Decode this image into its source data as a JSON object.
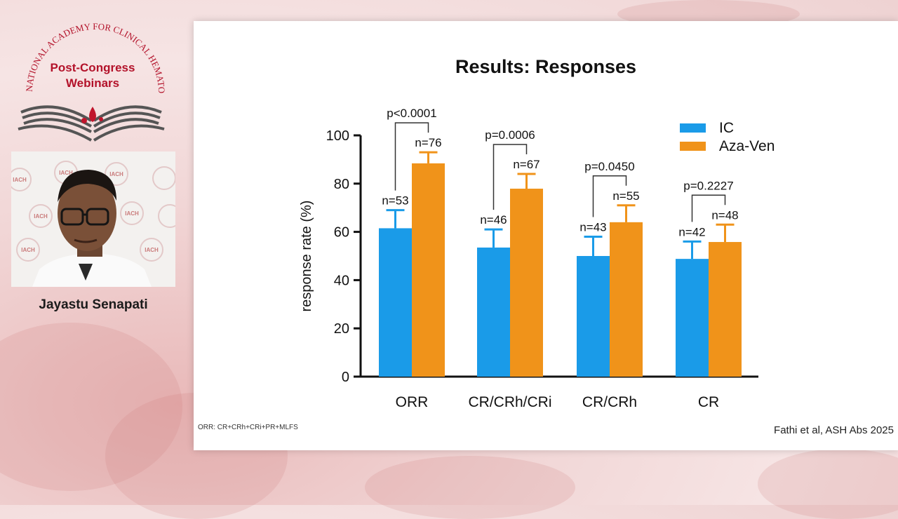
{
  "branding": {
    "arc_text": "INTERNATIONAL ACADEMY FOR CLINICAL HEMATOLOGY",
    "title_line1": "Post-Congress",
    "title_line2": "Webinars",
    "icon": "open-book-with-blood-drops-icon",
    "color": "#b3122a"
  },
  "speaker": {
    "name": "Jayastu Senapati",
    "backdrop_logo_text": "IACH"
  },
  "slide": {
    "title": "Results: Responses",
    "footnote": "ORR: CR+CRh+CRi+PR+MLFS",
    "citation": "Fathi et al, ASH Abs 2025"
  },
  "chart_data": {
    "type": "bar",
    "title": "Results: Responses",
    "ylabel": "response rate (%)",
    "xlabel": "",
    "ylim": [
      0,
      100
    ],
    "yticks": [
      0,
      20,
      40,
      60,
      80,
      100
    ],
    "categories": [
      "ORR",
      "CR/CRh/CRi",
      "CR/CRh",
      "CR"
    ],
    "series": [
      {
        "name": "IC",
        "color": "#1a9be8",
        "values": [
          61.5,
          53.5,
          50,
          48.8
        ],
        "error_upper": [
          69,
          61,
          58,
          56
        ],
        "labels": [
          "n=53",
          "n=46",
          "n=43",
          "n=42"
        ]
      },
      {
        "name": "Aza-Ven",
        "color": "#f0931a",
        "values": [
          88.4,
          77.9,
          64,
          55.8
        ],
        "error_upper": [
          93,
          84,
          71,
          63
        ],
        "labels": [
          "n=76",
          "n=67",
          "n=55",
          "n=48"
        ]
      }
    ],
    "p_values": [
      "p<0.0001",
      "p=0.0006",
      "p=0.0450",
      "p=0.2227"
    ],
    "legend_position": "top-right",
    "grid": false
  }
}
